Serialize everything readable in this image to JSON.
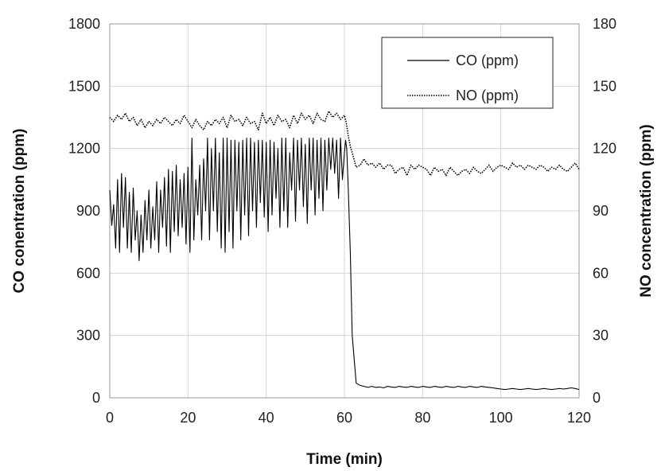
{
  "chart_data": {
    "type": "line",
    "xlabel": "Time (min)",
    "ylabel": "CO conentration (ppm)",
    "y2label": "NO concentration (ppm)",
    "xlim": [
      0,
      120
    ],
    "ylim": [
      0,
      1800
    ],
    "y2lim": [
      0,
      180
    ],
    "x_ticks": [
      "0",
      "20",
      "40",
      "60",
      "80",
      "100",
      "120"
    ],
    "y_ticks": [
      "0",
      "300",
      "600",
      "900",
      "1200",
      "1500",
      "1800"
    ],
    "y2_ticks": [
      "0",
      "30",
      "60",
      "90",
      "120",
      "150",
      "180"
    ],
    "grid": true,
    "legend_position": "top-right",
    "series": [
      {
        "name": "CO (ppm)",
        "axis": "left",
        "line_style": "solid",
        "color": "#000000",
        "x": [
          0,
          0.5,
          1,
          1.5,
          2,
          2.5,
          3,
          3.5,
          4,
          4.5,
          5,
          5.5,
          6,
          6.5,
          7,
          7.5,
          8,
          8.5,
          9,
          9.5,
          10,
          10.5,
          11,
          11.5,
          12,
          12.5,
          13,
          13.5,
          14,
          14.5,
          15,
          15.5,
          16,
          16.5,
          17,
          17.5,
          18,
          18.5,
          19,
          19.5,
          20,
          20.5,
          21,
          21.5,
          22,
          22.5,
          23,
          23.5,
          24,
          24.5,
          25,
          25.5,
          26,
          26.5,
          27,
          27.5,
          28,
          28.5,
          29,
          29.5,
          30,
          30.5,
          31,
          31.5,
          32,
          32.5,
          33,
          33.5,
          34,
          34.5,
          35,
          35.5,
          36,
          36.5,
          37,
          37.5,
          38,
          38.5,
          39,
          39.5,
          40,
          40.5,
          41,
          41.5,
          42,
          42.5,
          43,
          43.5,
          44,
          44.5,
          45,
          45.5,
          46,
          46.5,
          47,
          47.5,
          48,
          48.5,
          49,
          49.5,
          50,
          50.5,
          51,
          51.5,
          52,
          52.5,
          53,
          53.5,
          54,
          54.5,
          55,
          55.5,
          56,
          56.5,
          57,
          57.5,
          58,
          58.5,
          59,
          59.5,
          60,
          60.3,
          60.6,
          61,
          61.5,
          62,
          63,
          64,
          65,
          66,
          67,
          68,
          69,
          70,
          71,
          72,
          73,
          74,
          75,
          76,
          77,
          78,
          79,
          80,
          81,
          82,
          83,
          84,
          85,
          86,
          87,
          88,
          89,
          90,
          91,
          92,
          93,
          94,
          95,
          96,
          97,
          98,
          99,
          100,
          101,
          102,
          103,
          104,
          105,
          106,
          107,
          108,
          109,
          110,
          111,
          112,
          113,
          114,
          115,
          116,
          117,
          118,
          119,
          120
        ],
        "y": [
          1000,
          830,
          930,
          720,
          1050,
          700,
          1080,
          820,
          1060,
          720,
          990,
          700,
          1010,
          760,
          900,
          660,
          880,
          700,
          950,
          760,
          1000,
          720,
          920,
          760,
          1040,
          700,
          1000,
          820,
          1060,
          730,
          1100,
          700,
          1090,
          800,
          1120,
          780,
          1050,
          820,
          1080,
          740,
          1110,
          700,
          1250,
          760,
          1050,
          880,
          1120,
          760,
          1150,
          900,
          1250,
          760,
          1200,
          900,
          1250,
          800,
          1180,
          720,
          1250,
          700,
          1250,
          800,
          1240,
          720,
          1240,
          900,
          1230,
          760,
          1240,
          880,
          1250,
          780,
          1250,
          900,
          1230,
          820,
          1240,
          940,
          1240,
          870,
          1230,
          800,
          1240,
          880,
          1230,
          960,
          1200,
          820,
          1250,
          900,
          1250,
          820,
          1180,
          1000,
          1250,
          850,
          1240,
          1000,
          1250,
          920,
          1220,
          840,
          1250,
          1000,
          1250,
          880,
          1240,
          960,
          1250,
          900,
          1240,
          1000,
          1250,
          1100,
          1250,
          1080,
          1240,
          960,
          1250,
          1050,
          1180,
          1240,
          1200,
          1000,
          700,
          300,
          70,
          60,
          55,
          50,
          55,
          50,
          52,
          48,
          55,
          52,
          50,
          55,
          52,
          50,
          55,
          52,
          50,
          55,
          52,
          50,
          55,
          52,
          50,
          55,
          52,
          50,
          55,
          52,
          50,
          55,
          52,
          50,
          55,
          52,
          50,
          48,
          45,
          42,
          40,
          42,
          45,
          42,
          40,
          42,
          45,
          42,
          40,
          42,
          45,
          42,
          40,
          42,
          45,
          42,
          45,
          48,
          45,
          40
        ]
      },
      {
        "name": "NO (ppm)",
        "axis": "right",
        "line_style": "dotted",
        "color": "#000000",
        "x": [
          0,
          1,
          2,
          3,
          4,
          5,
          6,
          7,
          8,
          9,
          10,
          11,
          12,
          13,
          14,
          15,
          16,
          17,
          18,
          19,
          20,
          21,
          22,
          23,
          24,
          25,
          26,
          27,
          28,
          29,
          30,
          31,
          32,
          33,
          34,
          35,
          36,
          37,
          38,
          39,
          40,
          41,
          42,
          43,
          44,
          45,
          46,
          47,
          48,
          49,
          50,
          51,
          52,
          53,
          54,
          55,
          56,
          57,
          58,
          59,
          60,
          60.5,
          61,
          61.5,
          62,
          63,
          64,
          65,
          66,
          67,
          68,
          69,
          70,
          71,
          72,
          73,
          74,
          75,
          76,
          77,
          78,
          79,
          80,
          81,
          82,
          83,
          84,
          85,
          86,
          87,
          88,
          89,
          90,
          91,
          92,
          93,
          94,
          95,
          96,
          97,
          98,
          99,
          100,
          101,
          102,
          103,
          104,
          105,
          106,
          107,
          108,
          109,
          110,
          111,
          112,
          113,
          114,
          115,
          116,
          117,
          118,
          119,
          120
        ],
        "y": [
          135,
          133,
          136,
          134,
          137,
          133,
          135,
          131,
          134,
          130,
          133,
          131,
          134,
          132,
          135,
          133,
          131,
          134,
          132,
          136,
          133,
          130,
          134,
          131,
          129,
          133,
          131,
          134,
          132,
          135,
          130,
          136,
          133,
          134,
          131,
          135,
          132,
          133,
          129,
          137,
          132,
          135,
          131,
          136,
          133,
          134,
          130,
          136,
          132,
          137,
          134,
          136,
          132,
          137,
          134,
          133,
          138,
          135,
          137,
          134,
          136,
          132,
          126,
          121,
          118,
          111,
          112,
          115,
          112,
          113,
          111,
          113,
          110,
          112,
          112,
          108,
          110,
          111,
          107,
          112,
          110,
          112,
          111,
          110,
          107,
          111,
          109,
          110,
          107,
          111,
          109,
          107,
          109,
          110,
          108,
          111,
          109,
          108,
          110,
          112,
          109,
          111,
          112,
          111,
          110,
          113,
          111,
          112,
          110,
          112,
          111,
          110,
          112,
          111,
          109,
          111,
          110,
          112,
          110,
          109,
          111,
          113,
          110
        ]
      }
    ]
  }
}
